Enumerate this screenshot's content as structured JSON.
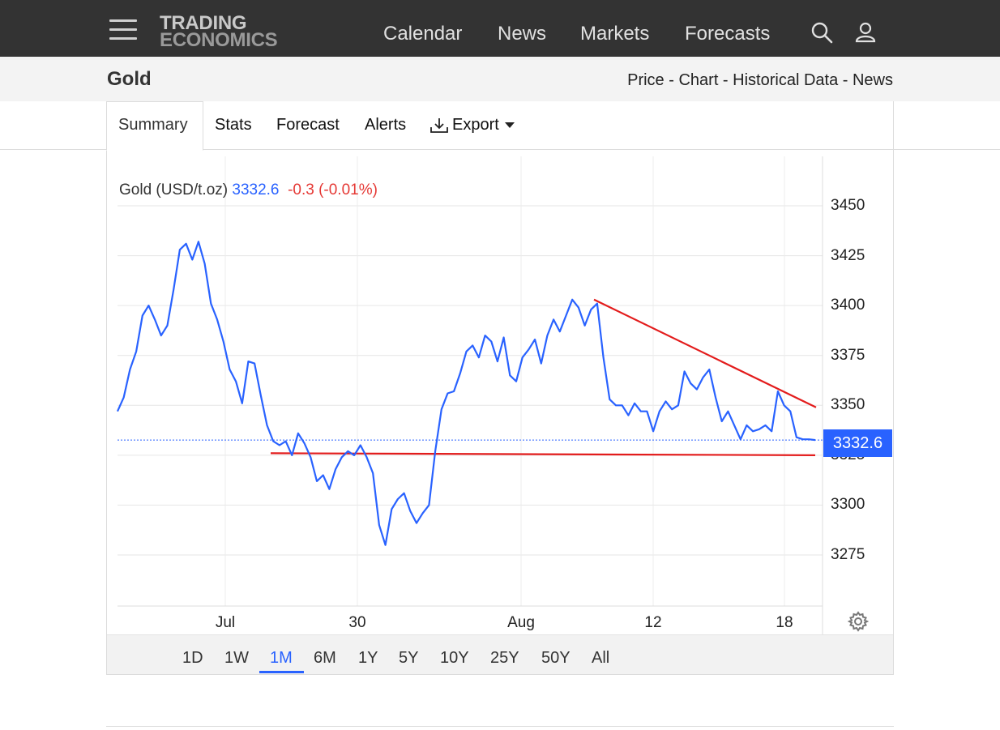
{
  "header": {
    "logo_line1": "TRADING",
    "logo_line2": "ECONOMICS",
    "nav": [
      "Calendar",
      "News",
      "Markets",
      "Forecasts"
    ],
    "icons": [
      "menu-icon",
      "search-icon",
      "user-icon"
    ]
  },
  "subheader": {
    "title": "Gold",
    "links": [
      "Price",
      "Chart",
      "Historical Data",
      "News"
    ],
    "separator": " - "
  },
  "tabs": {
    "summary": "Summary",
    "stats": "Stats",
    "forecast": "Forecast",
    "alerts": "Alerts",
    "export": "Export"
  },
  "legend": {
    "name": "Gold (USD/t.oz)",
    "price": "3332.6",
    "change": "-0.3 (-0.01%)"
  },
  "last_price_tag": "3332.6",
  "ranges": [
    "1D",
    "1W",
    "1M",
    "6M",
    "1Y",
    "5Y",
    "10Y",
    "25Y",
    "50Y",
    "All"
  ],
  "selected_range": "1M",
  "colors": {
    "series": "#2962ff",
    "trendline": "#e31c1c",
    "negative": "#e53935",
    "header_bg": "#333333"
  },
  "chart_data": {
    "type": "line",
    "y_ticks": [
      3275,
      3300,
      3325,
      3350,
      3375,
      3400,
      3425,
      3450
    ],
    "x_ticks": [
      "Jul",
      "30",
      "Aug",
      "12",
      "18"
    ],
    "ylim": [
      3257,
      3465
    ],
    "series": [
      {
        "values": [
          3347,
          3354,
          3368,
          3377,
          3395,
          3400,
          3393,
          3385,
          3390,
          3408,
          3428,
          3431,
          3423,
          3432,
          3421,
          3401,
          3393,
          3382,
          3368,
          3362,
          3351,
          3372,
          3371,
          3355,
          3340,
          3332,
          3330,
          3332,
          3325,
          3336,
          3331,
          3324,
          3312,
          3315,
          3308,
          3318,
          3324,
          3327,
          3325,
          3330,
          3324,
          3316,
          3290,
          3280,
          3298,
          3303,
          3306,
          3297,
          3291,
          3296,
          3300,
          3327,
          3348,
          3356,
          3357,
          3366,
          3377,
          3380,
          3374,
          3385,
          3382,
          3372,
          3384,
          3365,
          3362,
          3374,
          3378,
          3383,
          3371,
          3385,
          3393,
          3387,
          3395,
          3403,
          3399,
          3390,
          3398,
          3401,
          3374,
          3353,
          3350,
          3350,
          3345,
          3351,
          3347,
          3347,
          3337,
          3347,
          3352,
          3348,
          3350,
          3367,
          3361,
          3358,
          3364,
          3368,
          3354,
          3342,
          3347,
          3340,
          3333,
          3340,
          3337,
          3338,
          3340,
          3337,
          3357,
          3350,
          3347,
          3334,
          3333,
          3333,
          3332.6
        ]
      }
    ],
    "trendlines": [
      {
        "from": [
          3343,
          3403
        ],
        "to": [
          3375,
          3349
        ],
        "note": ""
      },
      {
        "from": [
          3325,
          3326
        ],
        "to": [
          3375,
          3325
        ],
        "note": ""
      }
    ]
  }
}
